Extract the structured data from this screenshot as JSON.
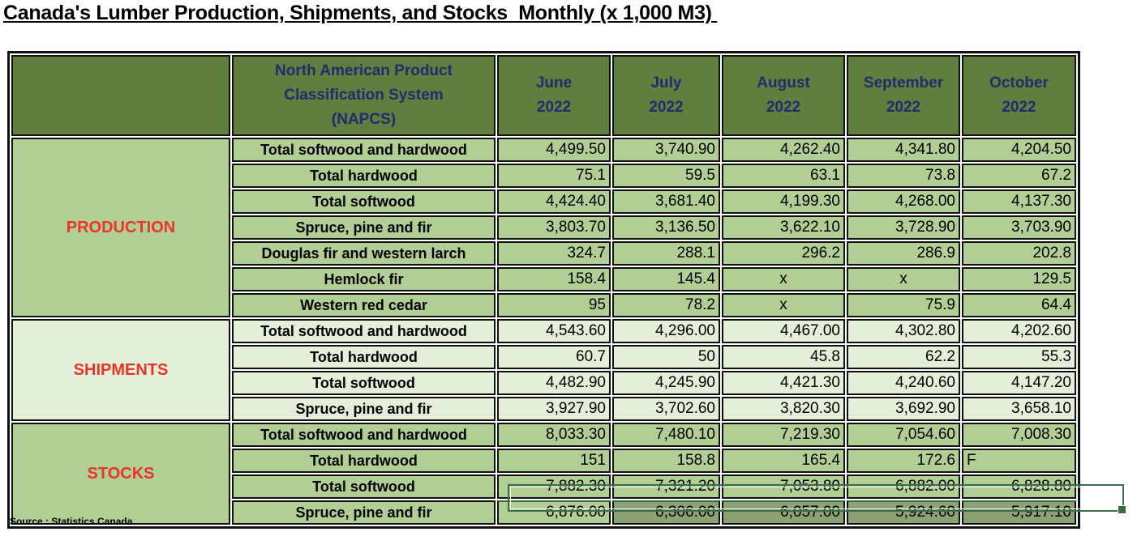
{
  "title": "Canada's Lumber Production, Shipments, and Stocks  Monthly (x 1,000 M3) ",
  "header": {
    "classification": [
      "North American Product",
      "Classification System",
      "(NAPCS)"
    ],
    "months": [
      {
        "month": "June",
        "year": "2022"
      },
      {
        "month": "July",
        "year": "2022"
      },
      {
        "month": "August",
        "year": "2022"
      },
      {
        "month": "September",
        "year": "2022"
      },
      {
        "month": "October",
        "year": "2022"
      }
    ]
  },
  "groups": [
    {
      "label": "PRODUCTION",
      "style": "prod",
      "rows": [
        {
          "category": "Total softwood and hardwood",
          "values": [
            "4,499.50",
            "3,740.90",
            "4,262.40",
            "4,341.80",
            "4,204.50"
          ]
        },
        {
          "category": "Total hardwood",
          "values": [
            "75.1",
            "59.5",
            "63.1",
            "73.8",
            "67.2"
          ]
        },
        {
          "category": "Total softwood",
          "values": [
            "4,424.40",
            "3,681.40",
            "4,199.30",
            "4,268.00",
            "4,137.30"
          ]
        },
        {
          "category": "Spruce, pine and fir",
          "values": [
            "3,803.70",
            "3,136.50",
            "3,622.10",
            "3,728.90",
            "3,703.90"
          ]
        },
        {
          "category": "Douglas fir and western larch",
          "values": [
            "324.7",
            "288.1",
            "296.2",
            "286.9",
            "202.8"
          ]
        },
        {
          "category": "Hemlock fir",
          "values": [
            "158.4",
            "145.4",
            "x",
            "x",
            "129.5"
          ]
        },
        {
          "category": "Western red cedar",
          "values": [
            "95",
            "78.2",
            "x",
            "75.9",
            "64.4"
          ]
        }
      ]
    },
    {
      "label": "SHIPMENTS",
      "style": "ship",
      "rows": [
        {
          "category": "Total softwood and hardwood",
          "values": [
            "4,543.60",
            "4,296.00",
            "4,467.00",
            "4,302.80",
            "4,202.60"
          ]
        },
        {
          "category": "Total hardwood",
          "values": [
            "60.7",
            "50",
            "45.8",
            "62.2",
            "55.3"
          ]
        },
        {
          "category": "Total softwood",
          "values": [
            "4,482.90",
            "4,245.90",
            "4,421.30",
            "4,240.60",
            "4,147.20"
          ]
        },
        {
          "category": "Spruce, pine and fir",
          "values": [
            "3,927.90",
            "3,702.60",
            "3,820.30",
            "3,692.90",
            "3,658.10"
          ]
        }
      ]
    },
    {
      "label": "STOCKS",
      "style": "stock",
      "rows": [
        {
          "category": "Total softwood and hardwood",
          "values": [
            "8,033.30",
            "7,480.10",
            "7,219.30",
            "7,054.60",
            "7,008.30"
          ]
        },
        {
          "category": "Total hardwood",
          "values": [
            "151",
            "158.8",
            "165.4",
            "172.6",
            "F"
          ]
        },
        {
          "category": "Total softwood",
          "values": [
            "7,882.30",
            "7,321.20",
            "7,053.80",
            "6,882.00",
            "6,828.80"
          ]
        },
        {
          "category": "Spruce, pine and fir",
          "values": [
            "6,876.00",
            "6,306.00",
            "6,057.00",
            "5,924.60",
            "5,917.10"
          ]
        }
      ]
    }
  ],
  "source": "Source : Statistics Canada"
}
